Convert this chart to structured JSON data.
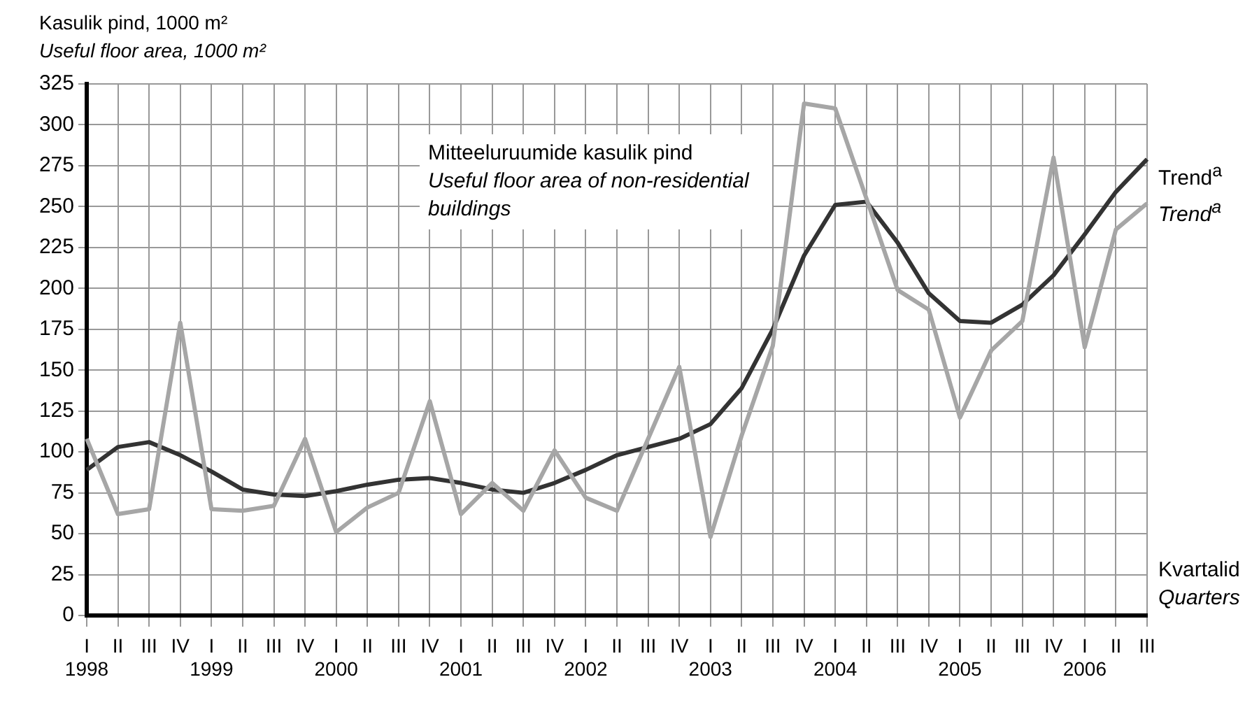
{
  "chart_data": {
    "type": "line",
    "ylabel": "Kasulik pind, 1000 m²\nUseful floor area, 1000 m²",
    "xlabel": "Kvartalid\nQuarters",
    "categories": [
      "I\n1998",
      "II",
      "III",
      "IV",
      "I\n1999",
      "II",
      "III",
      "IV",
      "I\n2000",
      "II",
      "III",
      "IV",
      "I\n2001",
      "II",
      "III",
      "IV",
      "I\n2002",
      "II",
      "III",
      "IV",
      "I\n2003",
      "II",
      "III",
      "IV",
      "I\n2004",
      "II",
      "III",
      "IV",
      "I\n2005",
      "II",
      "III",
      "IV",
      "I\n2006",
      "II",
      "III"
    ],
    "series": [
      {
        "name": "Mitteeluruumide kasulik pind\nUseful floor area of non-residential buildings",
        "color": "#a6a6a6",
        "values": [
          108,
          62,
          65,
          179,
          65,
          64,
          67,
          108,
          51,
          66,
          75,
          131,
          62,
          81,
          64,
          101,
          72,
          64,
          108,
          152,
          48,
          110,
          165,
          313,
          310,
          255,
          199,
          187,
          121,
          162,
          180,
          280,
          164,
          236,
          252
        ]
      },
      {
        "name": "Trend$^{a}$\nTrend$^{a}$",
        "color": "#333333",
        "values": [
          89,
          103,
          106,
          98,
          88,
          77,
          74,
          73,
          76,
          80,
          83,
          84,
          81,
          77,
          75,
          81,
          89,
          98,
          103,
          108,
          117,
          139,
          175,
          220,
          251,
          253,
          228,
          197,
          180,
          179,
          190,
          208,
          233,
          259,
          279
        ]
      }
    ],
    "ylim": [
      0,
      325
    ],
    "yticks": [
      0,
      25,
      50,
      75,
      100,
      125,
      150,
      175,
      200,
      225,
      250,
      275,
      300,
      325
    ],
    "grid": true,
    "legend": false,
    "marker": "none",
    "line_style": "solid"
  }
}
